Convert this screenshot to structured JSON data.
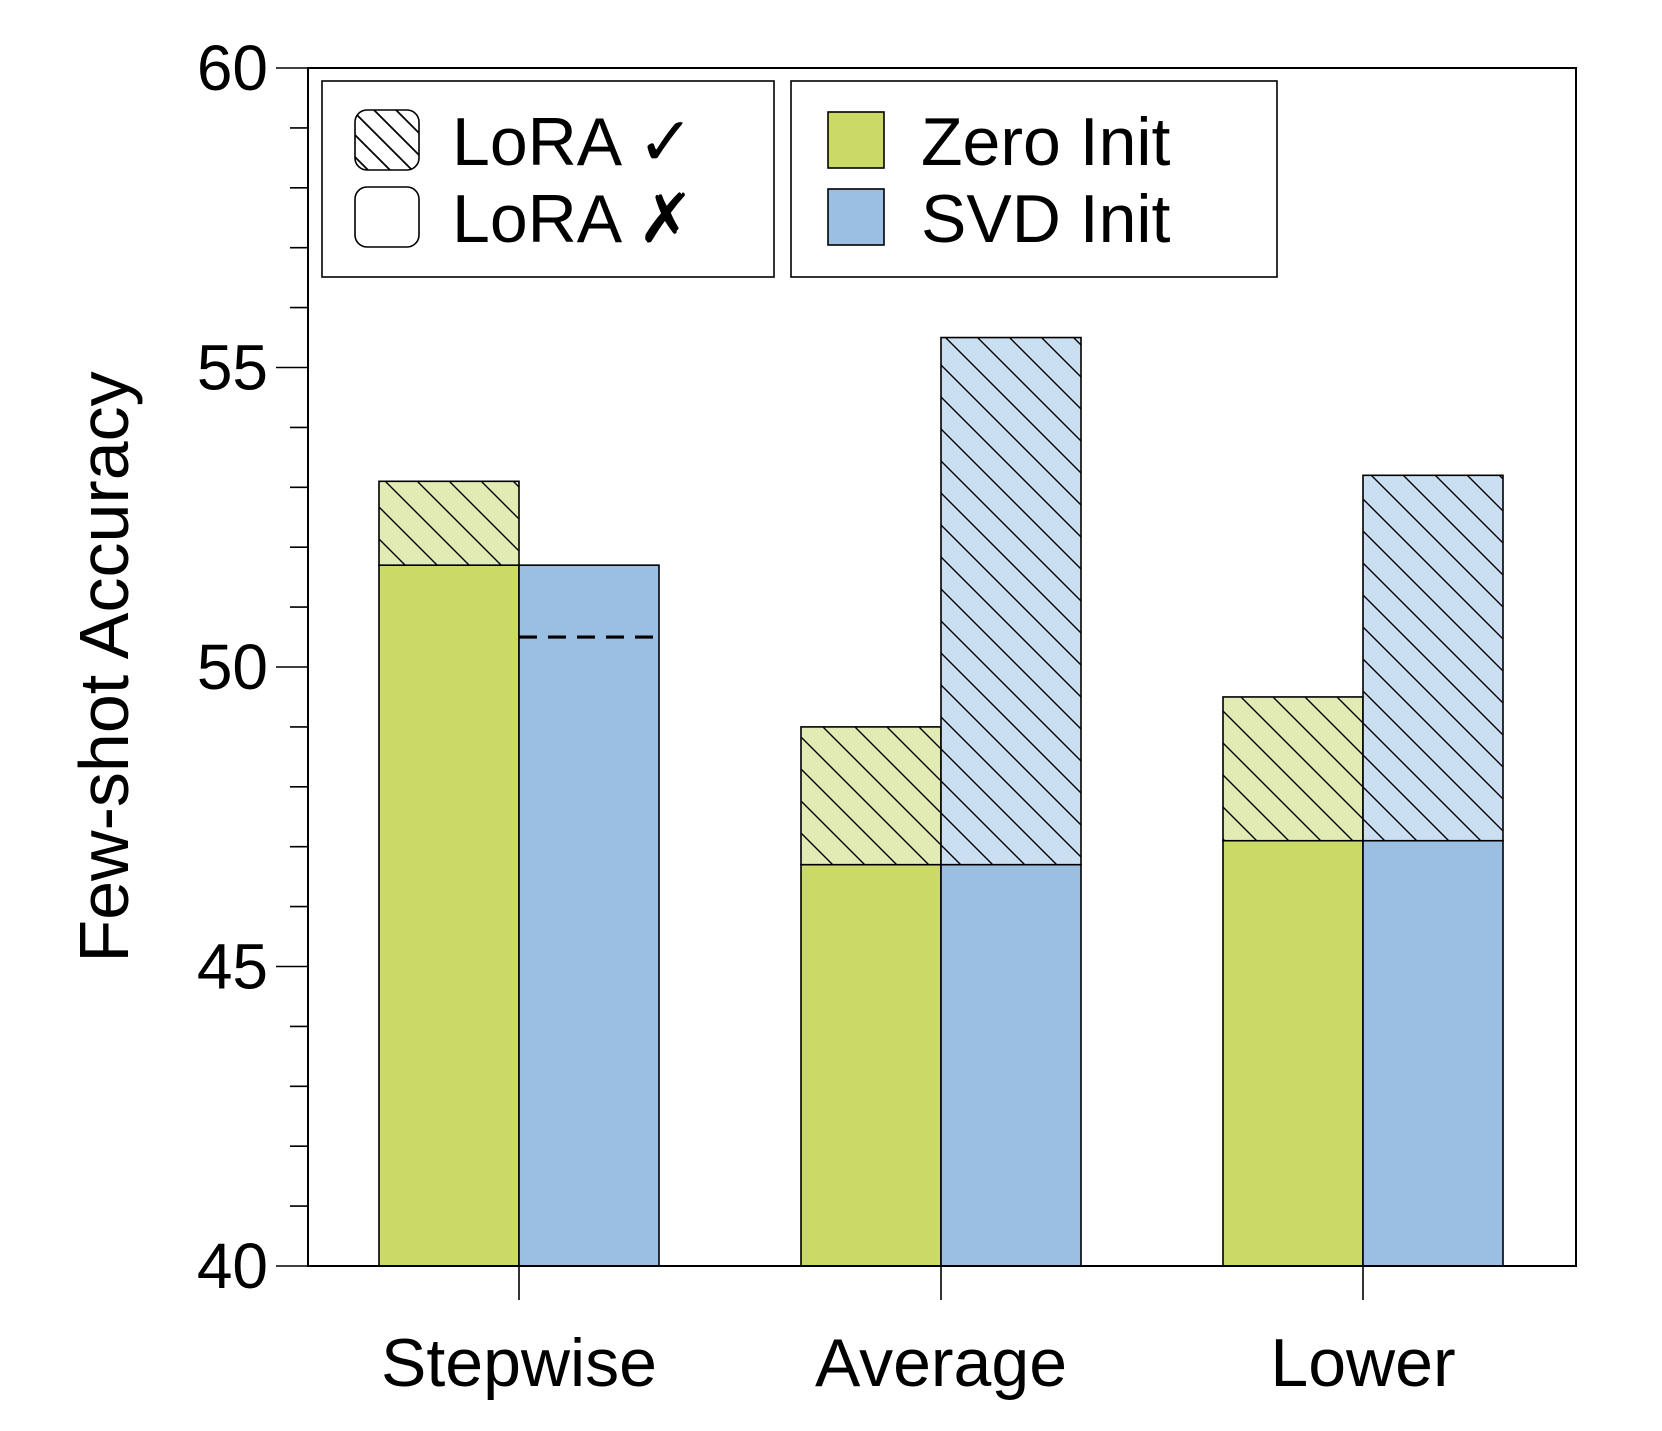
{
  "chart_data": {
    "type": "bar",
    "stacked": true,
    "categories": [
      "Stepwise",
      "Average",
      "Lower"
    ],
    "ylabel": "Few-shot Accuracy",
    "xlabel": "",
    "title": "",
    "ylim": [
      40,
      60
    ],
    "yticks": [
      40,
      45,
      50,
      55,
      60
    ],
    "y_minor_step": 1,
    "grid": false,
    "legend_placement": "top-left",
    "colors": {
      "zero_init": "#cbd966",
      "svd_init": "#9bbfe3",
      "zero_init_light": "#e3ebb5",
      "svd_init_light": "#cadff2",
      "edge": "#000000"
    },
    "legend": {
      "hatch_group": [
        {
          "label": "LoRA ✓",
          "style": "hatched"
        },
        {
          "label": "LoRA ✗",
          "style": "plain"
        }
      ],
      "color_group": [
        {
          "label": "Zero Init",
          "color": "#cbd966"
        },
        {
          "label": "SVD Init",
          "color": "#9bbfe3"
        }
      ]
    },
    "series": [
      {
        "name": "Zero Init",
        "color_key": "zero_init",
        "lora_off": [
          51.7,
          46.7,
          47.1
        ],
        "lora_on": [
          53.1,
          49.0,
          49.5
        ]
      },
      {
        "name": "SVD Init",
        "color_key": "svd_init",
        "lora_off": [
          51.7,
          46.7,
          47.1
        ],
        "lora_on": [
          51.7,
          55.5,
          53.2
        ]
      }
    ],
    "annotations": [
      {
        "type": "dashed-line",
        "category": "Stepwise",
        "series": "SVD Init",
        "y": 50.5
      }
    ]
  }
}
